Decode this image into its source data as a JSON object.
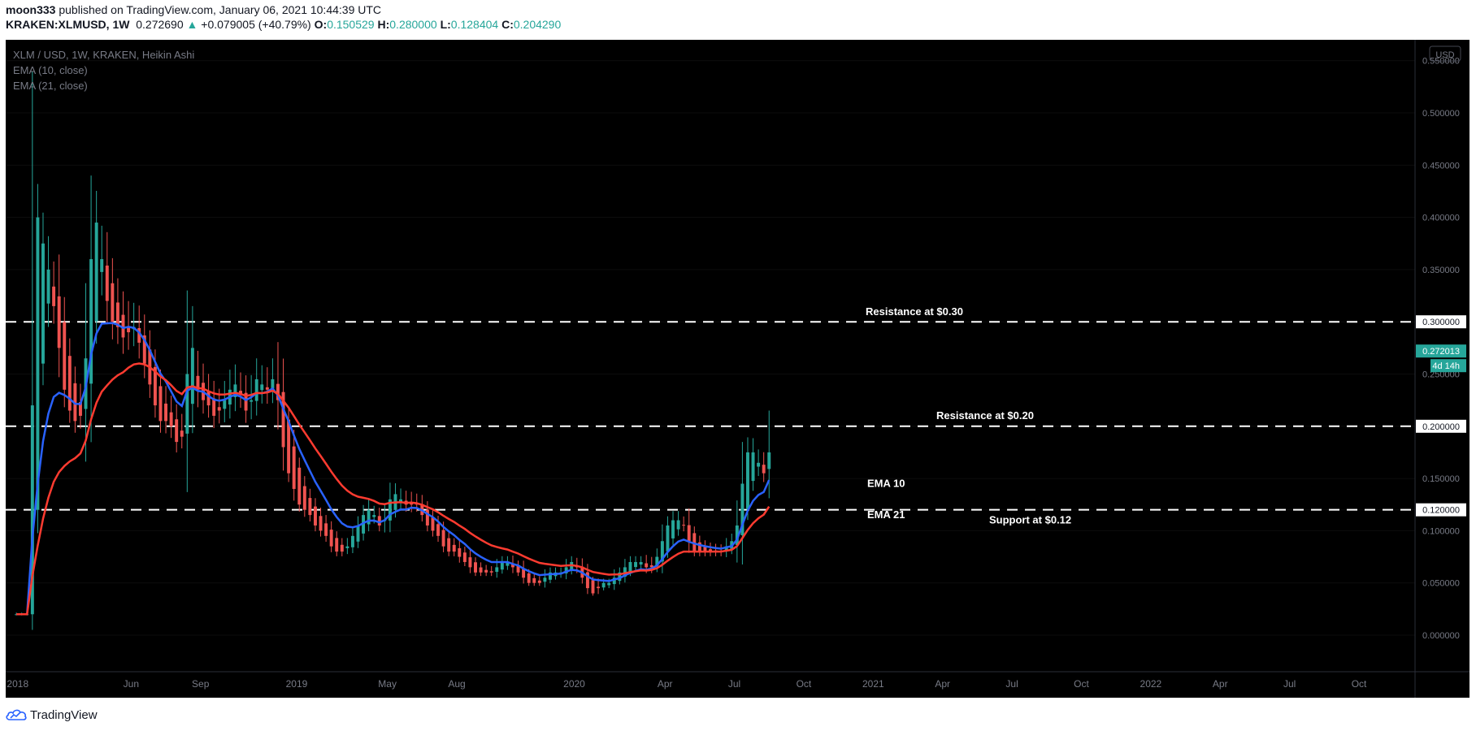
{
  "header": {
    "publisher": "moon333",
    "published_text": "published on TradingView.com, January 06, 2021 10:44:39 UTC",
    "symbol": "KRAKEN:XLMUSD, 1W",
    "last": "0.272690",
    "change_arrow": "▲",
    "change": "+0.079005 (+40.79%)",
    "o_label": "O:",
    "o": "0.150529",
    "h_label": "H:",
    "h": "0.280000",
    "l_label": "L:",
    "l": "0.128404",
    "c_label": "C:",
    "c": "0.204290"
  },
  "legend": {
    "title": "XLM / USD, 1W, KRAKEN, Heikin Ashi",
    "ema10": "EMA (10, close)",
    "ema21": "EMA (21, close)"
  },
  "footer": {
    "brand": "TradingView",
    "logo_icon": "tradingview-cloud-icon"
  },
  "colors": {
    "up": "#26a69a",
    "down": "#ef5350",
    "ema10": "#2962ff",
    "ema21": "#ff3b30",
    "bg": "#000000"
  },
  "chart_data": {
    "type": "candlestick",
    "title": "XLM / USD, 1W, KRAKEN, Heikin Ashi",
    "currency_badge": "USD",
    "ylim": [
      -0.035,
      0.57
    ],
    "y_ticks": [
      "0.550000",
      "0.500000",
      "0.450000",
      "0.400000",
      "0.350000",
      "0.300000",
      "0.250000",
      "0.200000",
      "0.150000",
      "0.120000",
      "0.100000",
      "0.050000",
      "0.000000"
    ],
    "x_ticks": [
      {
        "label": "2018",
        "t": 0.25
      },
      {
        "label": "Jun",
        "t": 21.5
      },
      {
        "label": "Sep",
        "t": 34.5
      },
      {
        "label": "2019",
        "t": 52.5
      },
      {
        "label": "May",
        "t": 69.5
      },
      {
        "label": "Aug",
        "t": 82.5
      },
      {
        "label": "2020",
        "t": 104.5
      },
      {
        "label": "Apr",
        "t": 121.5
      },
      {
        "label": "Jul",
        "t": 134.5
      },
      {
        "label": "Oct",
        "t": 147.5
      },
      {
        "label": "2021",
        "t": 160.5
      },
      {
        "label": "Apr",
        "t": 173.5
      },
      {
        "label": "Jul",
        "t": 186.5
      },
      {
        "label": "Oct",
        "t": 199.5
      },
      {
        "label": "2022",
        "t": 212.5
      },
      {
        "label": "Apr",
        "t": 225.5
      },
      {
        "label": "Jul",
        "t": 238.5
      },
      {
        "label": "Oct",
        "t": 251.5
      }
    ],
    "x_range_weeks": [
      -2,
      262
    ],
    "levels": [
      {
        "value": 0.3,
        "label": "Resistance at $0.30",
        "badge": "0.300000"
      },
      {
        "value": 0.2,
        "label": "Resistance at $0.20",
        "badge": "0.200000"
      },
      {
        "value": 0.12,
        "label": "Support at $0.12",
        "badge": "0.120000"
      }
    ],
    "current_price": {
      "value": 0.272013,
      "label": "0.272013",
      "countdown": "4d 14h"
    },
    "ema_labels": {
      "ema10": "EMA 10",
      "ema21": "EMA 21"
    },
    "closes": [
      0.02,
      0.02,
      0.02,
      0.42,
      0.38,
      0.37,
      0.33,
      0.3,
      0.25,
      0.22,
      0.21,
      0.2,
      0.22,
      0.31,
      0.41,
      0.38,
      0.34,
      0.3,
      0.3,
      0.29,
      0.28,
      0.3,
      0.29,
      0.27,
      0.25,
      0.23,
      0.21,
      0.2,
      0.21,
      0.19,
      0.18,
      0.2,
      0.3,
      0.25,
      0.22,
      0.23,
      0.21,
      0.21,
      0.22,
      0.23,
      0.24,
      0.24,
      0.22,
      0.21,
      0.24,
      0.25,
      0.23,
      0.24,
      0.25,
      0.2,
      0.16,
      0.15,
      0.13,
      0.12,
      0.12,
      0.11,
      0.1,
      0.1,
      0.09,
      0.08,
      0.08,
      0.08,
      0.09,
      0.1,
      0.11,
      0.12,
      0.12,
      0.11,
      0.1,
      0.12,
      0.14,
      0.13,
      0.13,
      0.12,
      0.13,
      0.12,
      0.11,
      0.1,
      0.1,
      0.09,
      0.08,
      0.08,
      0.08,
      0.07,
      0.07,
      0.06,
      0.06,
      0.06,
      0.06,
      0.06,
      0.07,
      0.07,
      0.07,
      0.06,
      0.06,
      0.05,
      0.05,
      0.05,
      0.05,
      0.06,
      0.06,
      0.06,
      0.06,
      0.07,
      0.07,
      0.06,
      0.05,
      0.04,
      0.04,
      0.05,
      0.05,
      0.05,
      0.06,
      0.06,
      0.07,
      0.07,
      0.07,
      0.07,
      0.06,
      0.07,
      0.08,
      0.1,
      0.11,
      0.11,
      0.11,
      0.1,
      0.08,
      0.08,
      0.08,
      0.08,
      0.08,
      0.08,
      0.08,
      0.09,
      0.09,
      0.12,
      0.17,
      0.18,
      0.17,
      0.16,
      0.15,
      0.2
    ]
  }
}
